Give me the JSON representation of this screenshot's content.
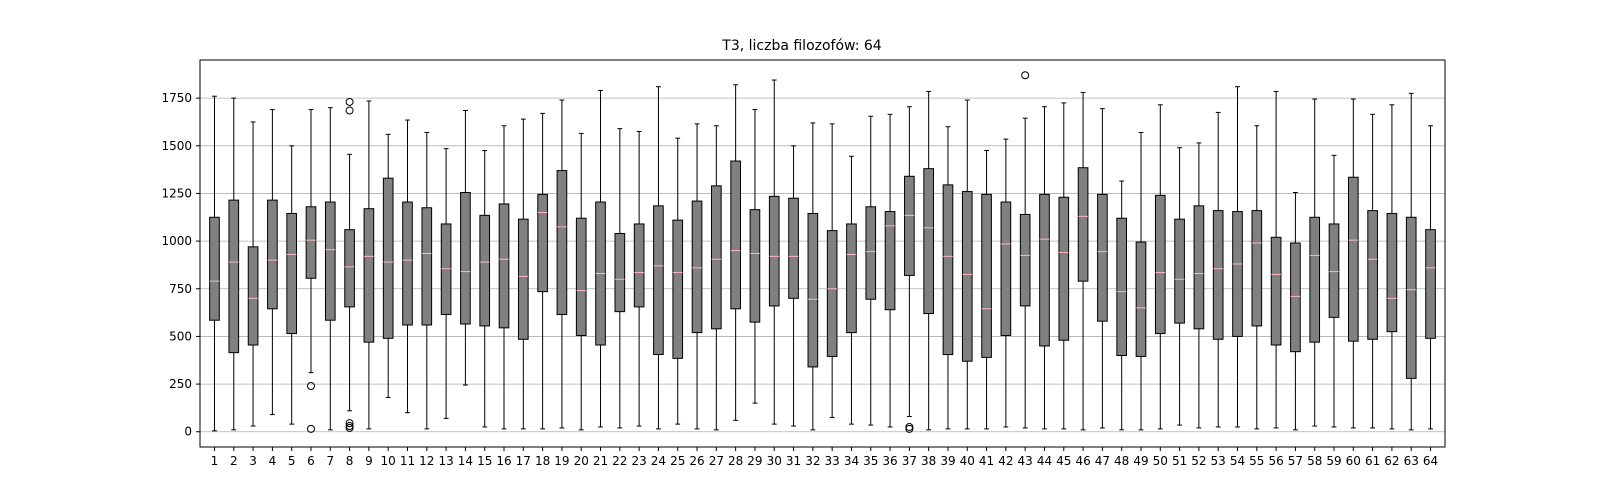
{
  "chart_data": {
    "type": "boxplot",
    "title": "T3, liczba filozofów: 64",
    "xlabel": "",
    "ylabel": "",
    "ylim": [
      -80,
      1950
    ],
    "yticks": [
      0,
      250,
      500,
      750,
      1000,
      1250,
      1500,
      1750
    ],
    "grid": "horizontal",
    "colors": {
      "box_fill": "#808080",
      "median": "#ffb6c1",
      "grid": "#b0b0b0",
      "edge": "#000000"
    },
    "categories": [
      "1",
      "2",
      "3",
      "4",
      "5",
      "6",
      "7",
      "8",
      "9",
      "10",
      "11",
      "12",
      "13",
      "14",
      "15",
      "16",
      "17",
      "18",
      "19",
      "20",
      "21",
      "22",
      "23",
      "24",
      "25",
      "26",
      "27",
      "28",
      "29",
      "30",
      "31",
      "32",
      "33",
      "34",
      "35",
      "36",
      "37",
      "38",
      "39",
      "40",
      "41",
      "42",
      "43",
      "44",
      "45",
      "46",
      "47",
      "48",
      "49",
      "50",
      "51",
      "52",
      "53",
      "54",
      "55",
      "56",
      "57",
      "58",
      "59",
      "60",
      "61",
      "62",
      "63",
      "64"
    ],
    "boxes": [
      {
        "whislo": 5,
        "q1": 585,
        "med": 790,
        "q3": 1125,
        "whishi": 1760,
        "fliers": []
      },
      {
        "whislo": 10,
        "q1": 415,
        "med": 890,
        "q3": 1215,
        "whishi": 1750,
        "fliers": []
      },
      {
        "whislo": 30,
        "q1": 455,
        "med": 700,
        "q3": 970,
        "whishi": 1625,
        "fliers": []
      },
      {
        "whislo": 90,
        "q1": 645,
        "med": 900,
        "q3": 1215,
        "whishi": 1690,
        "fliers": []
      },
      {
        "whislo": 40,
        "q1": 515,
        "med": 930,
        "q3": 1145,
        "whishi": 1500,
        "fliers": []
      },
      {
        "whislo": 310,
        "q1": 805,
        "med": 1005,
        "q3": 1180,
        "whishi": 1690,
        "fliers": [
          15,
          240
        ]
      },
      {
        "whislo": 10,
        "q1": 585,
        "med": 955,
        "q3": 1205,
        "whishi": 1700,
        "fliers": []
      },
      {
        "whislo": 110,
        "q1": 655,
        "med": 865,
        "q3": 1060,
        "whishi": 1455,
        "fliers": [
          20,
          30,
          45,
          1685,
          1730
        ]
      },
      {
        "whislo": 15,
        "q1": 470,
        "med": 920,
        "q3": 1170,
        "whishi": 1735,
        "fliers": []
      },
      {
        "whislo": 180,
        "q1": 490,
        "med": 890,
        "q3": 1330,
        "whishi": 1560,
        "fliers": []
      },
      {
        "whislo": 100,
        "q1": 560,
        "med": 900,
        "q3": 1205,
        "whishi": 1635,
        "fliers": []
      },
      {
        "whislo": 15,
        "q1": 560,
        "med": 935,
        "q3": 1175,
        "whishi": 1570,
        "fliers": []
      },
      {
        "whislo": 70,
        "q1": 615,
        "med": 855,
        "q3": 1090,
        "whishi": 1485,
        "fliers": []
      },
      {
        "whislo": 245,
        "q1": 565,
        "med": 840,
        "q3": 1255,
        "whishi": 1685,
        "fliers": []
      },
      {
        "whislo": 25,
        "q1": 555,
        "med": 890,
        "q3": 1135,
        "whishi": 1475,
        "fliers": []
      },
      {
        "whislo": 15,
        "q1": 545,
        "med": 905,
        "q3": 1195,
        "whishi": 1605,
        "fliers": []
      },
      {
        "whislo": 15,
        "q1": 485,
        "med": 815,
        "q3": 1115,
        "whishi": 1640,
        "fliers": []
      },
      {
        "whislo": 15,
        "q1": 735,
        "med": 1150,
        "q3": 1245,
        "whishi": 1670,
        "fliers": []
      },
      {
        "whislo": 20,
        "q1": 615,
        "med": 1075,
        "q3": 1370,
        "whishi": 1740,
        "fliers": []
      },
      {
        "whislo": 10,
        "q1": 505,
        "med": 740,
        "q3": 1120,
        "whishi": 1565,
        "fliers": []
      },
      {
        "whislo": 25,
        "q1": 455,
        "med": 830,
        "q3": 1205,
        "whishi": 1790,
        "fliers": []
      },
      {
        "whislo": 20,
        "q1": 630,
        "med": 800,
        "q3": 1040,
        "whishi": 1590,
        "fliers": []
      },
      {
        "whislo": 30,
        "q1": 655,
        "med": 835,
        "q3": 1090,
        "whishi": 1575,
        "fliers": []
      },
      {
        "whislo": 15,
        "q1": 405,
        "med": 870,
        "q3": 1185,
        "whishi": 1810,
        "fliers": []
      },
      {
        "whislo": 40,
        "q1": 385,
        "med": 835,
        "q3": 1110,
        "whishi": 1540,
        "fliers": []
      },
      {
        "whislo": 15,
        "q1": 520,
        "med": 860,
        "q3": 1210,
        "whishi": 1615,
        "fliers": []
      },
      {
        "whislo": 10,
        "q1": 540,
        "med": 905,
        "q3": 1290,
        "whishi": 1605,
        "fliers": []
      },
      {
        "whislo": 60,
        "q1": 645,
        "med": 950,
        "q3": 1420,
        "whishi": 1820,
        "fliers": []
      },
      {
        "whislo": 150,
        "q1": 575,
        "med": 935,
        "q3": 1165,
        "whishi": 1690,
        "fliers": []
      },
      {
        "whislo": 40,
        "q1": 660,
        "med": 920,
        "q3": 1235,
        "whishi": 1845,
        "fliers": []
      },
      {
        "whislo": 30,
        "q1": 700,
        "med": 920,
        "q3": 1225,
        "whishi": 1500,
        "fliers": []
      },
      {
        "whislo": 10,
        "q1": 340,
        "med": 695,
        "q3": 1145,
        "whishi": 1620,
        "fliers": []
      },
      {
        "whislo": 75,
        "q1": 395,
        "med": 750,
        "q3": 1055,
        "whishi": 1615,
        "fliers": []
      },
      {
        "whislo": 40,
        "q1": 520,
        "med": 930,
        "q3": 1090,
        "whishi": 1445,
        "fliers": []
      },
      {
        "whislo": 35,
        "q1": 695,
        "med": 945,
        "q3": 1180,
        "whishi": 1655,
        "fliers": []
      },
      {
        "whislo": 25,
        "q1": 640,
        "med": 1080,
        "q3": 1155,
        "whishi": 1665,
        "fliers": []
      },
      {
        "whislo": 80,
        "q1": 820,
        "med": 1135,
        "q3": 1340,
        "whishi": 1705,
        "fliers": [
          15,
          25
        ]
      },
      {
        "whislo": 10,
        "q1": 620,
        "med": 1070,
        "q3": 1380,
        "whishi": 1785,
        "fliers": []
      },
      {
        "whislo": 15,
        "q1": 405,
        "med": 920,
        "q3": 1295,
        "whishi": 1600,
        "fliers": []
      },
      {
        "whislo": 15,
        "q1": 370,
        "med": 825,
        "q3": 1260,
        "whishi": 1740,
        "fliers": []
      },
      {
        "whislo": 15,
        "q1": 390,
        "med": 645,
        "q3": 1245,
        "whishi": 1475,
        "fliers": []
      },
      {
        "whislo": 25,
        "q1": 505,
        "med": 985,
        "q3": 1205,
        "whishi": 1535,
        "fliers": []
      },
      {
        "whislo": 20,
        "q1": 660,
        "med": 925,
        "q3": 1140,
        "whishi": 1645,
        "fliers": [
          1870
        ]
      },
      {
        "whislo": 15,
        "q1": 450,
        "med": 1010,
        "q3": 1245,
        "whishi": 1705,
        "fliers": []
      },
      {
        "whislo": 15,
        "q1": 480,
        "med": 940,
        "q3": 1230,
        "whishi": 1725,
        "fliers": []
      },
      {
        "whislo": 10,
        "q1": 790,
        "med": 1130,
        "q3": 1385,
        "whishi": 1780,
        "fliers": []
      },
      {
        "whislo": 20,
        "q1": 580,
        "med": 945,
        "q3": 1245,
        "whishi": 1695,
        "fliers": []
      },
      {
        "whislo": 10,
        "q1": 400,
        "med": 735,
        "q3": 1120,
        "whishi": 1315,
        "fliers": []
      },
      {
        "whislo": 10,
        "q1": 395,
        "med": 650,
        "q3": 995,
        "whishi": 1570,
        "fliers": []
      },
      {
        "whislo": 15,
        "q1": 515,
        "med": 835,
        "q3": 1240,
        "whishi": 1715,
        "fliers": []
      },
      {
        "whislo": 35,
        "q1": 570,
        "med": 800,
        "q3": 1115,
        "whishi": 1490,
        "fliers": []
      },
      {
        "whislo": 20,
        "q1": 540,
        "med": 830,
        "q3": 1185,
        "whishi": 1515,
        "fliers": []
      },
      {
        "whislo": 25,
        "q1": 485,
        "med": 855,
        "q3": 1160,
        "whishi": 1675,
        "fliers": []
      },
      {
        "whislo": 25,
        "q1": 500,
        "med": 880,
        "q3": 1155,
        "whishi": 1810,
        "fliers": []
      },
      {
        "whislo": 15,
        "q1": 555,
        "med": 990,
        "q3": 1160,
        "whishi": 1605,
        "fliers": []
      },
      {
        "whislo": 20,
        "q1": 455,
        "med": 825,
        "q3": 1020,
        "whishi": 1785,
        "fliers": []
      },
      {
        "whislo": 10,
        "q1": 420,
        "med": 710,
        "q3": 990,
        "whishi": 1255,
        "fliers": []
      },
      {
        "whislo": 30,
        "q1": 470,
        "med": 925,
        "q3": 1125,
        "whishi": 1745,
        "fliers": []
      },
      {
        "whislo": 25,
        "q1": 600,
        "med": 840,
        "q3": 1090,
        "whishi": 1450,
        "fliers": []
      },
      {
        "whislo": 20,
        "q1": 475,
        "med": 1005,
        "q3": 1335,
        "whishi": 1745,
        "fliers": []
      },
      {
        "whislo": 20,
        "q1": 485,
        "med": 905,
        "q3": 1160,
        "whishi": 1665,
        "fliers": []
      },
      {
        "whislo": 15,
        "q1": 525,
        "med": 700,
        "q3": 1145,
        "whishi": 1715,
        "fliers": []
      },
      {
        "whislo": 10,
        "q1": 280,
        "med": 745,
        "q3": 1125,
        "whishi": 1775,
        "fliers": []
      },
      {
        "whislo": 15,
        "q1": 490,
        "med": 860,
        "q3": 1060,
        "whishi": 1605,
        "fliers": []
      }
    ]
  }
}
